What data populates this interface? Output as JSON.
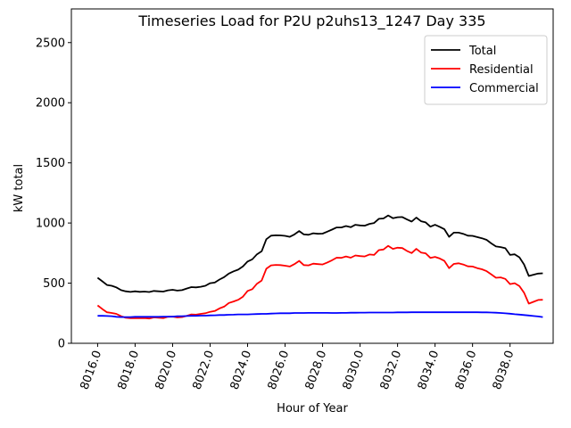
{
  "chart_data": {
    "type": "line",
    "title": "Timeseries Load for P2U p2uhs13_1247  Day 335",
    "xlabel": "Hour of Year",
    "ylabel": "kW total",
    "xlim": [
      8014.6,
      8040.3
    ],
    "ylim": [
      0,
      2780
    ],
    "xticks": [
      8016,
      8018,
      8020,
      8022,
      8024,
      8026,
      8028,
      8030,
      8032,
      8034,
      8036,
      8038
    ],
    "xtick_labels": [
      "8016.0",
      "8018.0",
      "8020.0",
      "8022.0",
      "8024.0",
      "8026.0",
      "8028.0",
      "8030.0",
      "8032.0",
      "8034.0",
      "8036.0",
      "8038.0"
    ],
    "yticks": [
      0,
      500,
      1000,
      1500,
      2000,
      2500
    ],
    "ytick_labels": [
      "0",
      "500",
      "1000",
      "1500",
      "2000",
      "2500"
    ],
    "grid": false,
    "legend_position": "top-right",
    "x": [
      8016.0,
      8016.25,
      8016.5,
      8016.75,
      8017.0,
      8017.25,
      8017.5,
      8017.75,
      8018.0,
      8018.25,
      8018.5,
      8018.75,
      8019.0,
      8019.25,
      8019.5,
      8019.75,
      8020.0,
      8020.25,
      8020.5,
      8020.75,
      8021.0,
      8021.25,
      8021.5,
      8021.75,
      8022.0,
      8022.25,
      8022.5,
      8022.75,
      8023.0,
      8023.25,
      8023.5,
      8023.75,
      8024.0,
      8024.25,
      8024.5,
      8024.75,
      8025.0,
      8025.25,
      8025.5,
      8025.75,
      8026.0,
      8026.25,
      8026.5,
      8026.75,
      8027.0,
      8027.25,
      8027.5,
      8027.75,
      8028.0,
      8028.25,
      8028.5,
      8028.75,
      8029.0,
      8029.25,
      8029.5,
      8029.75,
      8030.0,
      8030.25,
      8030.5,
      8030.75,
      8031.0,
      8031.25,
      8031.5,
      8031.75,
      8032.0,
      8032.25,
      8032.5,
      8032.75,
      8033.0,
      8033.25,
      8033.5,
      8033.75,
      8034.0,
      8034.25,
      8034.5,
      8034.75,
      8035.0,
      8035.25,
      8035.5,
      8035.75,
      8036.0,
      8036.25,
      8036.5,
      8036.75,
      8037.0,
      8037.25,
      8037.5,
      8037.75,
      8038.0,
      8038.25,
      8038.5,
      8038.75,
      8039.0,
      8039.25,
      8039.5,
      8039.75
    ],
    "series": [
      {
        "name": "Total",
        "color": "#000000",
        "values": [
          545,
          515,
          485,
          478,
          465,
          442,
          432,
          427,
          432,
          428,
          430,
          426,
          435,
          432,
          430,
          440,
          445,
          438,
          442,
          455,
          467,
          465,
          470,
          478,
          500,
          505,
          530,
          550,
          580,
          598,
          612,
          640,
          680,
          698,
          740,
          765,
          865,
          895,
          898,
          897,
          893,
          885,
          905,
          933,
          905,
          902,
          915,
          910,
          912,
          928,
          945,
          963,
          963,
          975,
          965,
          985,
          980,
          978,
          993,
          1000,
          1035,
          1038,
          1063,
          1040,
          1048,
          1050,
          1030,
          1012,
          1045,
          1015,
          1005,
          970,
          985,
          968,
          948,
          885,
          920,
          920,
          910,
          895,
          893,
          883,
          873,
          860,
          830,
          805,
          800,
          790,
          735,
          740,
          715,
          655,
          560,
          570,
          580,
          582
        ]
      },
      {
        "name": "Residential",
        "color": "#ff0000",
        "values": [
          315,
          285,
          258,
          252,
          245,
          225,
          212,
          208,
          210,
          208,
          210,
          206,
          215,
          212,
          210,
          220,
          222,
          215,
          218,
          228,
          240,
          238,
          245,
          250,
          262,
          268,
          290,
          305,
          335,
          348,
          362,
          388,
          435,
          450,
          495,
          522,
          620,
          648,
          652,
          650,
          645,
          638,
          658,
          685,
          650,
          648,
          662,
          658,
          655,
          672,
          690,
          712,
          710,
          722,
          712,
          730,
          725,
          722,
          738,
          735,
          775,
          780,
          810,
          785,
          795,
          792,
          768,
          750,
          785,
          755,
          748,
          710,
          718,
          705,
          685,
          625,
          660,
          665,
          655,
          640,
          638,
          625,
          615,
          600,
          572,
          545,
          548,
          535,
          492,
          500,
          475,
          420,
          330,
          345,
          360,
          362
        ]
      },
      {
        "name": "Commercial",
        "color": "#0000ff",
        "values": [
          228,
          228,
          227,
          225,
          220,
          218,
          218,
          218,
          220,
          220,
          220,
          220,
          220,
          220,
          222,
          222,
          222,
          225,
          225,
          227,
          228,
          228,
          230,
          230,
          232,
          233,
          235,
          235,
          237,
          238,
          240,
          240,
          240,
          242,
          243,
          245,
          245,
          247,
          248,
          250,
          250,
          250,
          252,
          252,
          252,
          253,
          253,
          253,
          253,
          253,
          252,
          252,
          253,
          253,
          254,
          254,
          255,
          255,
          256,
          256,
          256,
          256,
          256,
          256,
          257,
          257,
          257,
          258,
          258,
          258,
          258,
          258,
          258,
          258,
          258,
          258,
          258,
          258,
          258,
          258,
          258,
          258,
          257,
          257,
          256,
          254,
          252,
          249,
          246,
          242,
          239,
          235,
          231,
          227,
          223,
          218
        ]
      }
    ]
  }
}
